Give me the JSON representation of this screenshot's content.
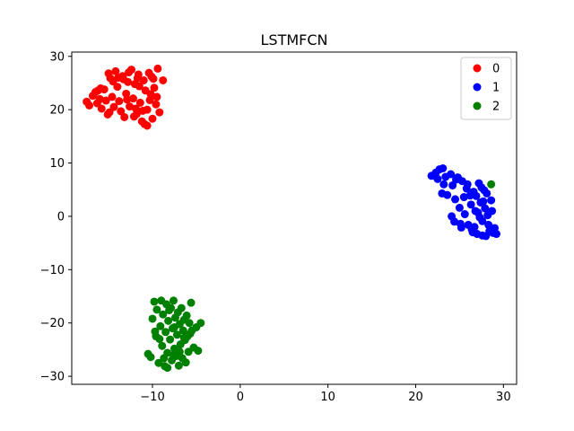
{
  "chart_data": {
    "type": "scatter",
    "title": "LSTMFCN",
    "xlabel": "",
    "ylabel": "",
    "xlim": [
      -19.2,
      31.5
    ],
    "ylim": [
      -31.5,
      30.8
    ],
    "xticks": [
      -10,
      0,
      10,
      20,
      30
    ],
    "yticks": [
      -30,
      -20,
      -10,
      0,
      10,
      20,
      30
    ],
    "grid": false,
    "legend_position": "top-right",
    "series": [
      {
        "name": "0",
        "color": "#ff0000",
        "points": [
          [
            -17.5,
            21.5
          ],
          [
            -17.2,
            20.8
          ],
          [
            -16.8,
            22.6
          ],
          [
            -16.5,
            23.3
          ],
          [
            -16.3,
            21.2
          ],
          [
            -16.0,
            22.0
          ],
          [
            -15.8,
            20.2
          ],
          [
            -15.5,
            23.8
          ],
          [
            -15.3,
            21.7
          ],
          [
            -15.1,
            19.1
          ],
          [
            -15.0,
            26.8
          ],
          [
            -14.8,
            25.9
          ],
          [
            -14.6,
            22.4
          ],
          [
            -14.4,
            20.5
          ],
          [
            -14.2,
            27.2
          ],
          [
            -14.0,
            24.3
          ],
          [
            -13.8,
            21.6
          ],
          [
            -13.6,
            19.7
          ],
          [
            -13.4,
            26.3
          ],
          [
            -13.2,
            18.6
          ],
          [
            -13.0,
            23.0
          ],
          [
            -12.8,
            25.2
          ],
          [
            -12.6,
            20.6
          ],
          [
            -12.4,
            27.5
          ],
          [
            -12.2,
            22.1
          ],
          [
            -12.0,
            24.8
          ],
          [
            -11.8,
            19.2
          ],
          [
            -11.6,
            26.6
          ],
          [
            -11.4,
            21.3
          ],
          [
            -11.2,
            17.8
          ],
          [
            -11.0,
            25.5
          ],
          [
            -10.8,
            23.6
          ],
          [
            -10.6,
            20.0
          ],
          [
            -10.4,
            26.9
          ],
          [
            -10.2,
            22.9
          ],
          [
            -10.0,
            18.3
          ],
          [
            -9.8,
            24.1
          ],
          [
            -9.6,
            21.0
          ],
          [
            -9.4,
            27.7
          ],
          [
            -9.2,
            19.5
          ],
          [
            -13.9,
            26.0
          ],
          [
            -12.7,
            27.0
          ],
          [
            -11.9,
            20.2
          ],
          [
            -10.9,
            17.3
          ],
          [
            -10.3,
            21.8
          ],
          [
            -9.9,
            25.8
          ],
          [
            -11.5,
            24.4
          ],
          [
            -12.9,
            21.9
          ],
          [
            -14.5,
            25.3
          ],
          [
            -15.9,
            24.0
          ],
          [
            -10.6,
            17.0
          ],
          [
            -9.5,
            22.4
          ],
          [
            -8.8,
            25.5
          ],
          [
            -12.1,
            18.7
          ],
          [
            -11.1,
            19.8
          ],
          [
            -13.3,
            25.7
          ],
          [
            -14.9,
            19.5
          ],
          [
            -16.2,
            23.6
          ],
          [
            -10.1,
            26.2
          ],
          [
            -11.7,
            25.9
          ]
        ]
      },
      {
        "name": "1",
        "color": "#0000ff",
        "points": [
          [
            21.8,
            7.6
          ],
          [
            22.3,
            8.2
          ],
          [
            22.7,
            8.8
          ],
          [
            23.1,
            9.0
          ],
          [
            23.4,
            7.4
          ],
          [
            23.0,
            4.3
          ],
          [
            23.6,
            4.0
          ],
          [
            24.0,
            7.9
          ],
          [
            24.2,
            5.8
          ],
          [
            24.5,
            3.2
          ],
          [
            24.8,
            7.3
          ],
          [
            25.0,
            1.6
          ],
          [
            25.3,
            6.6
          ],
          [
            25.6,
            0.4
          ],
          [
            25.8,
            5.2
          ],
          [
            26.0,
            -1.6
          ],
          [
            26.2,
            3.9
          ],
          [
            26.4,
            -2.5
          ],
          [
            26.6,
            4.6
          ],
          [
            26.8,
            1.0
          ],
          [
            27.0,
            -3.3
          ],
          [
            27.2,
            6.2
          ],
          [
            27.4,
            2.6
          ],
          [
            27.6,
            -0.9
          ],
          [
            27.8,
            4.9
          ],
          [
            28.0,
            -3.7
          ],
          [
            28.2,
            0.2
          ],
          [
            28.4,
            -2.8
          ],
          [
            28.6,
            3.0
          ],
          [
            28.8,
            -3.1
          ],
          [
            29.0,
            -2.2
          ],
          [
            29.2,
            -3.3
          ],
          [
            24.1,
            0.0
          ],
          [
            24.4,
            -1.0
          ],
          [
            25.1,
            -1.4
          ],
          [
            25.5,
            3.6
          ],
          [
            26.3,
            2.2
          ],
          [
            26.7,
            -2.0
          ],
          [
            27.1,
            0.7
          ],
          [
            27.5,
            5.4
          ],
          [
            27.9,
            1.5
          ],
          [
            28.3,
            -1.6
          ],
          [
            28.7,
            1.0
          ],
          [
            27.3,
            -0.2
          ],
          [
            26.9,
            3.8
          ],
          [
            22.5,
            7.0
          ],
          [
            23.2,
            6.0
          ],
          [
            24.6,
            6.9
          ],
          [
            25.9,
            6.0
          ],
          [
            28.1,
            4.3
          ],
          [
            27.7,
            2.8
          ],
          [
            26.5,
            -3.0
          ],
          [
            25.2,
            -2.1
          ],
          [
            28.5,
            -2.3
          ],
          [
            27.6,
            -3.6
          ]
        ]
      },
      {
        "name": "2",
        "color": "#008000",
        "points": [
          [
            28.6,
            6.0
          ],
          [
            -10.5,
            -25.8
          ],
          [
            -10.2,
            -26.4
          ],
          [
            -10.0,
            -19.2
          ],
          [
            -9.8,
            -16.0
          ],
          [
            -9.6,
            -22.5
          ],
          [
            -9.5,
            -17.5
          ],
          [
            -9.3,
            -27.5
          ],
          [
            -9.1,
            -20.6
          ],
          [
            -9.0,
            -15.8
          ],
          [
            -8.9,
            -24.3
          ],
          [
            -8.8,
            -18.4
          ],
          [
            -8.6,
            -28.1
          ],
          [
            -8.5,
            -21.7
          ],
          [
            -8.4,
            -16.5
          ],
          [
            -8.3,
            -25.6
          ],
          [
            -8.2,
            -19.6
          ],
          [
            -8.0,
            -23.1
          ],
          [
            -7.9,
            -17.2
          ],
          [
            -7.8,
            -27.0
          ],
          [
            -7.7,
            -21.0
          ],
          [
            -7.6,
            -15.8
          ],
          [
            -7.5,
            -24.8
          ],
          [
            -7.4,
            -19.0
          ],
          [
            -7.3,
            -26.2
          ],
          [
            -7.2,
            -22.2
          ],
          [
            -7.1,
            -18.0
          ],
          [
            -7.0,
            -28.0
          ],
          [
            -6.9,
            -20.2
          ],
          [
            -6.8,
            -24.0
          ],
          [
            -6.7,
            -17.2
          ],
          [
            -6.6,
            -26.6
          ],
          [
            -6.5,
            -21.4
          ],
          [
            -6.4,
            -19.4
          ],
          [
            -6.3,
            -23.2
          ],
          [
            -6.2,
            -27.4
          ],
          [
            -6.1,
            -18.6
          ],
          [
            -6.0,
            -22.5
          ],
          [
            -5.9,
            -25.4
          ],
          [
            -5.8,
            -20.0
          ],
          [
            -5.6,
            -16.2
          ],
          [
            -5.5,
            -21.4
          ],
          [
            -5.3,
            -24.6
          ],
          [
            -5.0,
            -20.8
          ],
          [
            -4.8,
            -25.2
          ],
          [
            -4.5,
            -20.0
          ],
          [
            -9.7,
            -21.6
          ],
          [
            -9.2,
            -23.0
          ],
          [
            -8.7,
            -26.6
          ],
          [
            -8.1,
            -17.6
          ],
          [
            -7.5,
            -20.8
          ],
          [
            -6.9,
            -25.4
          ],
          [
            -6.4,
            -22.8
          ],
          [
            -5.7,
            -22.0
          ],
          [
            -8.3,
            -28.4
          ],
          [
            -7.6,
            -26.0
          ]
        ]
      }
    ]
  }
}
